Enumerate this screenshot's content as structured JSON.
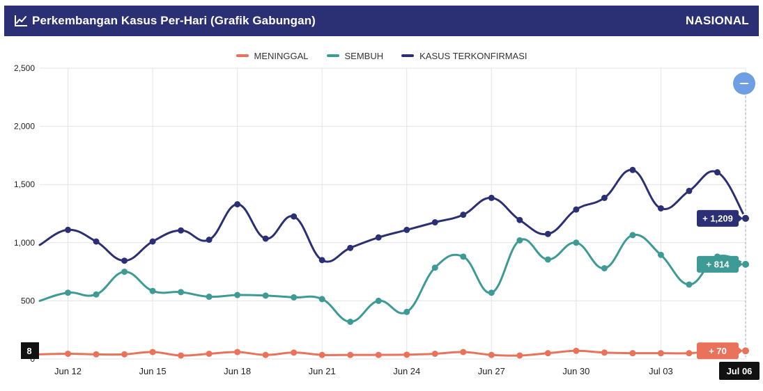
{
  "header": {
    "title": "Perkembangan Kasus Per-Hari (Grafik Gabungan)",
    "region": "NASIONAL",
    "icon": "trend-chart-icon"
  },
  "legend": {
    "items": [
      {
        "label": "MENINGGAL",
        "color": "#e8735a"
      },
      {
        "label": "SEMBUH",
        "color": "#3d9a94"
      },
      {
        "label": "KASUS TERKONFIRMASI",
        "color": "#2b3075"
      }
    ]
  },
  "reset_button": {
    "icon": "minus-icon",
    "color": "#6f9ee3"
  },
  "tooltips": {
    "confirmed": "+ 1,209",
    "recovered": "+ 814",
    "deaths": "+ 70",
    "x_value": "8",
    "date": "Jul 06"
  },
  "chart_data": {
    "type": "line",
    "x": [
      "Jun 11",
      "Jun 12",
      "Jun 13",
      "Jun 14",
      "Jun 15",
      "Jun 16",
      "Jun 17",
      "Jun 18",
      "Jun 19",
      "Jun 20",
      "Jun 21",
      "Jun 22",
      "Jun 23",
      "Jun 24",
      "Jun 25",
      "Jun 26",
      "Jun 27",
      "Jun 28",
      "Jun 29",
      "Jun 30",
      "Jul 01",
      "Jul 02",
      "Jul 03",
      "Jul 04",
      "Jul 05",
      "Jul 06"
    ],
    "x_ticks": [
      "Jun 12",
      "Jun 15",
      "Jun 18",
      "Jun 21",
      "Jun 24",
      "Jun 27",
      "Jun 30",
      "Jul 03",
      "Jul 06"
    ],
    "y_ticks": [
      0,
      500,
      1000,
      1500,
      2000,
      2500
    ],
    "ylim": [
      0,
      2500
    ],
    "grid": true,
    "legend_position": "top-center",
    "series": [
      {
        "name": "MENINGGAL",
        "color": "#e8735a",
        "values": [
          40,
          45,
          40,
          40,
          60,
          30,
          45,
          60,
          35,
          55,
          35,
          35,
          35,
          37,
          45,
          60,
          35,
          30,
          50,
          70,
          55,
          50,
          50,
          50,
          70,
          70
        ]
      },
      {
        "name": "SEMBUH",
        "color": "#3d9a94",
        "values": [
          500,
          570,
          555,
          750,
          585,
          575,
          535,
          550,
          545,
          530,
          515,
          320,
          500,
          405,
          785,
          880,
          570,
          1020,
          855,
          1000,
          780,
          1065,
          895,
          640,
          880,
          814
        ]
      },
      {
        "name": "KASUS TERKONFIRMASI",
        "color": "#2b3075",
        "values": [
          980,
          1110,
          1010,
          845,
          1010,
          1105,
          1025,
          1330,
          1035,
          1225,
          850,
          955,
          1045,
          1110,
          1175,
          1240,
          1385,
          1195,
          1075,
          1285,
          1385,
          1625,
          1295,
          1445,
          1605,
          1209
        ]
      }
    ]
  }
}
